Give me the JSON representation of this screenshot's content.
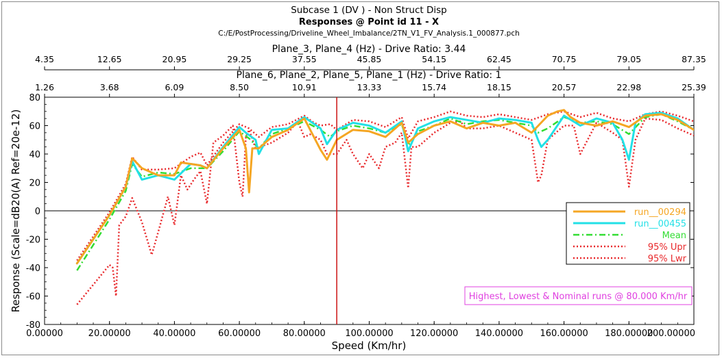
{
  "header": {
    "line1": "Subcase 1 (DV ) - Non Struct Disp",
    "line2": "Responses @ Point id 11 - X",
    "line3": "C:/E/PostProcessing/Driveline_Wheel_Imbalance/2TN_V1_FV_Analysis.1_000877.pch"
  },
  "top_axis_1": {
    "label": "Plane_3, Plane_4 (Hz) - Drive Ratio: 3.44",
    "ticks": [
      "4.35",
      "12.65",
      "20.95",
      "29.25",
      "37.55",
      "45.85",
      "54.15",
      "62.45",
      "70.75",
      "79.05",
      "87.35"
    ]
  },
  "top_axis_2": {
    "label": "Plane_6, Plane_2, Plane_5, Plane_1 (Hz) - Drive Ratio: 1",
    "ticks": [
      "1.26",
      "3.68",
      "6.09",
      "8.50",
      "10.91",
      "13.33",
      "15.74",
      "18.15",
      "20.57",
      "22.98",
      "25.39"
    ]
  },
  "annotation": "Highest, Lowest & Nominal runs @ 80.000 Km/hr",
  "colors": {
    "run_00294": "#f5a623",
    "run_00455": "#22e0e6",
    "mean": "#33dd33",
    "bounds": "#e8282b",
    "marker": "#cc1111",
    "annotation": "#e040e0"
  },
  "chart_data": {
    "type": "line",
    "xlabel": "Speed (Km/hr)",
    "ylabel": "Response (Scale=dB20(A) Ref=20e-12)",
    "xlim": [
      0,
      200
    ],
    "ylim": [
      -80,
      80
    ],
    "x_ticks": [
      "0.00000",
      "20.00000",
      "40.00000",
      "60.00000",
      "80.00000",
      "100.00000",
      "120.00000",
      "140.00000",
      "160.00000",
      "180.00000",
      "200.00000"
    ],
    "y_ticks": [
      "80",
      "60",
      "40",
      "20",
      "0",
      "-20",
      "-40",
      "-60",
      "-80"
    ],
    "zero_line": true,
    "vertical_marker_x": 90,
    "legend_position": "right",
    "series": [
      {
        "name": "run__00294",
        "style": "solid",
        "x": [
          10,
          15,
          20,
          25,
          27,
          30,
          35,
          40,
          42,
          45,
          48,
          50,
          55,
          60,
          62,
          63,
          64,
          66,
          70,
          75,
          80,
          85,
          87,
          90,
          95,
          100,
          105,
          110,
          112,
          115,
          120,
          125,
          130,
          135,
          140,
          145,
          150,
          155,
          158,
          160,
          162,
          165,
          170,
          175,
          180,
          185,
          190,
          195,
          200
        ],
        "y": [
          -37,
          -20,
          -3,
          17,
          37,
          30,
          25,
          25,
          34,
          33,
          32,
          30,
          44,
          57,
          44,
          13,
          44,
          44,
          52,
          57,
          65,
          43,
          36,
          50,
          57,
          56,
          52,
          62,
          48,
          54,
          60,
          63,
          58,
          62,
          60,
          62,
          55,
          67,
          70,
          71,
          66,
          62,
          60,
          63,
          59,
          67,
          68,
          64,
          57
        ]
      },
      {
        "name": "run__00455",
        "style": "solid",
        "x": [
          10,
          15,
          20,
          25,
          27,
          30,
          35,
          40,
          45,
          48,
          50,
          55,
          60,
          62,
          65,
          66,
          70,
          75,
          80,
          85,
          87,
          90,
          95,
          100,
          105,
          110,
          112,
          115,
          120,
          125,
          130,
          135,
          140,
          145,
          150,
          152,
          153,
          155,
          160,
          165,
          170,
          175,
          178,
          180,
          182,
          185,
          190,
          195,
          200
        ],
        "y": [
          -37,
          -20,
          -3,
          17,
          35,
          22,
          25,
          22,
          33,
          32,
          30,
          45,
          59,
          55,
          50,
          40,
          57,
          58,
          66,
          58,
          47,
          57,
          62,
          60,
          55,
          63,
          42,
          58,
          63,
          66,
          64,
          62,
          65,
          64,
          62,
          50,
          45,
          50,
          67,
          60,
          65,
          62,
          50,
          36,
          62,
          68,
          69,
          65,
          57
        ]
      },
      {
        "name": "Mean",
        "style": "dashdot",
        "x": [
          10,
          15,
          20,
          25,
          27,
          30,
          35,
          40,
          45,
          50,
          55,
          60,
          63,
          66,
          70,
          75,
          80,
          85,
          88,
          90,
          95,
          100,
          105,
          110,
          112,
          115,
          120,
          125,
          130,
          135,
          140,
          145,
          150,
          152,
          155,
          160,
          165,
          170,
          175,
          180,
          185,
          190,
          195,
          200
        ],
        "y": [
          -42,
          -24,
          -6,
          14,
          33,
          24,
          27,
          26,
          30,
          30,
          42,
          56,
          51,
          44,
          54,
          58,
          63,
          57,
          52,
          56,
          60,
          58,
          55,
          61,
          46,
          56,
          60,
          65,
          61,
          63,
          64,
          62,
          60,
          55,
          58,
          66,
          62,
          63,
          61,
          54,
          66,
          68,
          63,
          57
        ]
      },
      {
        "name": "95% Upr",
        "style": "dotted",
        "x": [
          10,
          15,
          20,
          25,
          27,
          30,
          35,
          40,
          45,
          48,
          50,
          55,
          60,
          63,
          66,
          70,
          75,
          80,
          83,
          85,
          88,
          90,
          95,
          100,
          105,
          110,
          112,
          115,
          120,
          125,
          130,
          135,
          140,
          145,
          150,
          155,
          160,
          165,
          170,
          175,
          180,
          185,
          190,
          195,
          200
        ],
        "y": [
          -35,
          -18,
          -1,
          19,
          38,
          29,
          29,
          30,
          38,
          41,
          32,
          48,
          61,
          58,
          52,
          59,
          61,
          67,
          62,
          60,
          61,
          57,
          64,
          63,
          59,
          66,
          51,
          63,
          66,
          70,
          67,
          66,
          68,
          66,
          64,
          68,
          70,
          66,
          69,
          65,
          63,
          68,
          70,
          67,
          63
        ]
      },
      {
        "name": "95% Lwr",
        "style": "dotted",
        "x": [
          10,
          15,
          20,
          21,
          22,
          23,
          25,
          27,
          30,
          33,
          35,
          38,
          40,
          42,
          44,
          46,
          48,
          50,
          52,
          55,
          58,
          60,
          61,
          62,
          63,
          65,
          70,
          75,
          78,
          80,
          82,
          85,
          87,
          90,
          93,
          95,
          98,
          100,
          103,
          105,
          108,
          110,
          112,
          113,
          115,
          120,
          125,
          128,
          130,
          135,
          140,
          145,
          150,
          152,
          153,
          155,
          160,
          163,
          165,
          170,
          175,
          178,
          180,
          182,
          185,
          190,
          195,
          200
        ],
        "y": [
          -66,
          -52,
          -38,
          -40,
          -60,
          -10,
          -4,
          9,
          -8,
          -31,
          -15,
          10,
          -10,
          25,
          15,
          22,
          28,
          5,
          48,
          53,
          60,
          20,
          10,
          52,
          57,
          44,
          48,
          55,
          63,
          52,
          54,
          50,
          40,
          40,
          50,
          40,
          30,
          40,
          30,
          45,
          48,
          55,
          16,
          45,
          45,
          55,
          62,
          63,
          58,
          58,
          60,
          55,
          50,
          20,
          25,
          50,
          60,
          60,
          40,
          62,
          55,
          50,
          17,
          50,
          65,
          64,
          58,
          53
        ]
      }
    ]
  }
}
